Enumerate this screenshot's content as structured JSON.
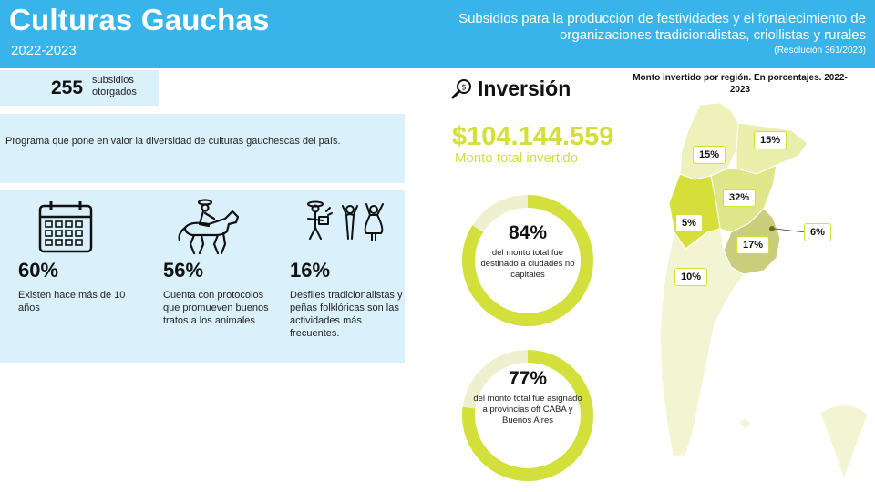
{
  "header": {
    "title": "Culturas Gauchas",
    "years": "2022-2023",
    "subtitle": "Subsidios para la producción de festividades y el fortalecimiento de organizaciones tradicionalistas, criollistas y rurales",
    "resolution": "(Resolución 361/2023)"
  },
  "subsidios": {
    "count": "255",
    "label": "subsidios otorgados"
  },
  "programa": {
    "text": "Programa que pone en valor la diversidad de culturas gauchescas del país."
  },
  "stats": [
    {
      "icon": "calendar-icon",
      "percent": "60%",
      "description": "Existen hace más de 10 años"
    },
    {
      "icon": "horse-rider-icon",
      "percent": "56%",
      "description": "Cuenta con protocolos que promueven buenos tratos a los animales"
    },
    {
      "icon": "folk-dancers-icon",
      "percent": "16%",
      "description": "Desfiles tradicionalistas y peñas folklóricas son las actividades más frecuentes."
    }
  ],
  "inversion": {
    "title": "Inversión",
    "icon": "money-search-icon",
    "amount": "$104.144.559",
    "amount_label": "Monto total invertido"
  },
  "donuts": [
    {
      "percent": "84%",
      "value": 84,
      "text": "del monto total fue destinado a ciudades no capitales"
    },
    {
      "percent": "77%",
      "value": 77,
      "text": "del monto total fue asignado a provincias off CABA y Buenos Aires"
    }
  ],
  "map": {
    "title": "Monto invertido por región. En porcentajes. 2022-2023",
    "regions": [
      {
        "name": "noroeste",
        "percent": "15%",
        "color": "#eef1ba"
      },
      {
        "name": "noreste",
        "percent": "15%",
        "color": "#e9eeaa"
      },
      {
        "name": "centro",
        "percent": "32%",
        "color": "#dfe68a"
      },
      {
        "name": "cuyo",
        "percent": "5%",
        "color": "#d6df3a"
      },
      {
        "name": "caba",
        "percent": "6%",
        "color": "#6b6f1e"
      },
      {
        "name": "buenos-aires",
        "percent": "17%",
        "color": "#c9cd7c"
      },
      {
        "name": "patagonia",
        "percent": "10%",
        "color": "#f3f5d2"
      }
    ]
  },
  "colors": {
    "header_bg": "#39b4ea",
    "panel_bg": "#daf1fb",
    "accent": "#d3df3a"
  }
}
